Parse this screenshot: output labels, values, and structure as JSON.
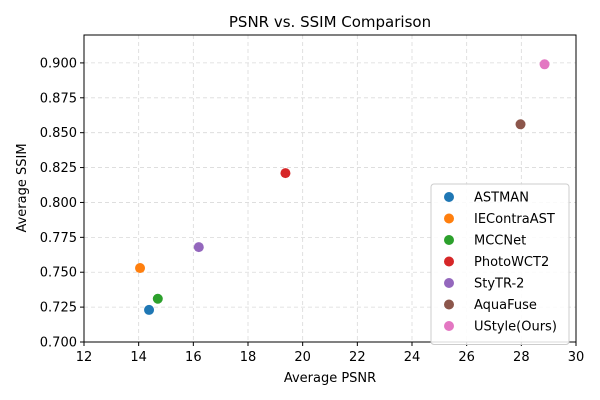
{
  "chart_data": {
    "type": "scatter",
    "title": "PSNR vs. SSIM Comparison",
    "xlabel": "Average PSNR",
    "ylabel": "Average SSIM",
    "xlim": [
      12,
      30
    ],
    "ylim": [
      0.7,
      0.92
    ],
    "xticks": [
      12,
      14,
      16,
      18,
      20,
      22,
      24,
      26,
      28,
      30
    ],
    "xtick_labels": [
      "12",
      "14",
      "16",
      "18",
      "20",
      "22",
      "24",
      "26",
      "28",
      "30"
    ],
    "yticks": [
      0.7,
      0.725,
      0.75,
      0.775,
      0.8,
      0.825,
      0.85,
      0.875,
      0.9
    ],
    "ytick_labels": [
      "0.700",
      "0.725",
      "0.750",
      "0.775",
      "0.800",
      "0.825",
      "0.850",
      "0.875",
      "0.900"
    ],
    "grid": true,
    "legend_position": "lower-right",
    "series": [
      {
        "name": "ASTMAN",
        "x": 14.38,
        "y": 0.723,
        "color": "#1f77b4"
      },
      {
        "name": "IEContraAST",
        "x": 14.05,
        "y": 0.753,
        "color": "#ff7f0e"
      },
      {
        "name": "MCCNet",
        "x": 14.7,
        "y": 0.731,
        "color": "#2ca02c"
      },
      {
        "name": "PhotoWCT2",
        "x": 19.37,
        "y": 0.821,
        "color": "#d62728"
      },
      {
        "name": "StyTR-2",
        "x": 16.2,
        "y": 0.768,
        "color": "#9467bd"
      },
      {
        "name": "AquaFuse",
        "x": 27.97,
        "y": 0.856,
        "color": "#8c564b"
      },
      {
        "name": "UStyle(Ours)",
        "x": 28.85,
        "y": 0.899,
        "color": "#e377c2"
      }
    ]
  }
}
